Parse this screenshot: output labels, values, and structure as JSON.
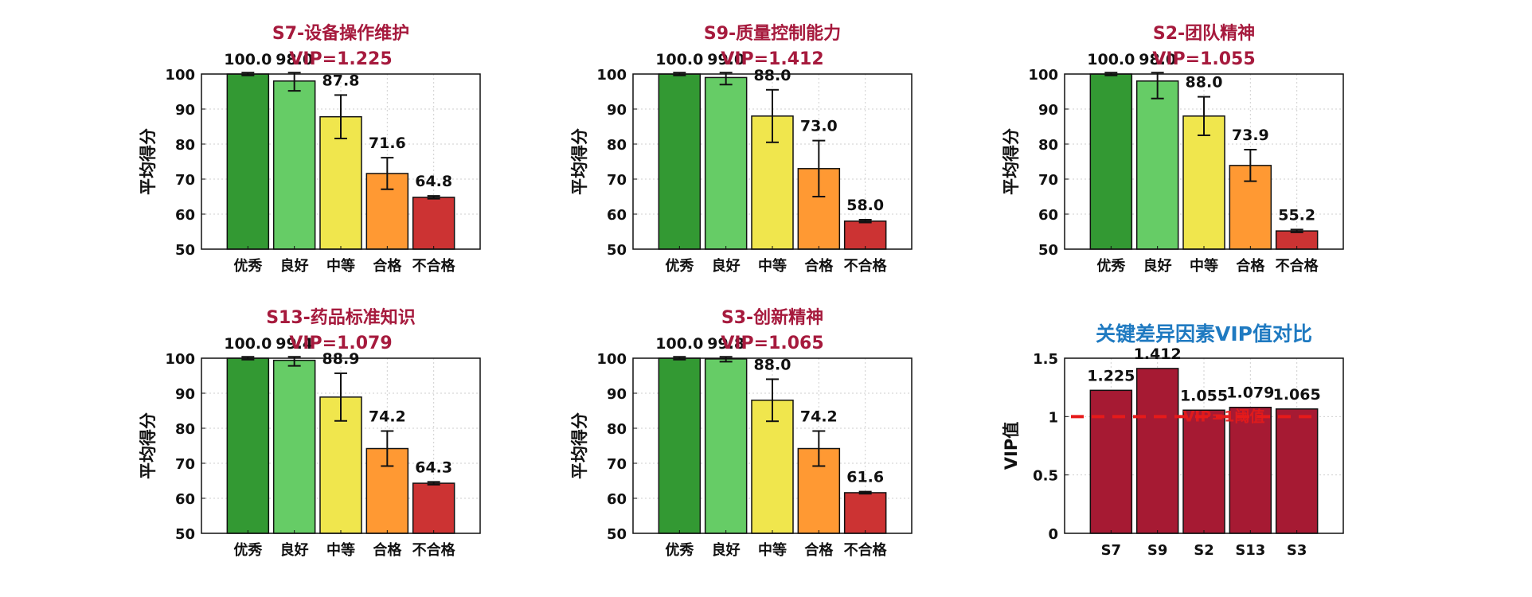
{
  "colors": {
    "excellent": "#339933",
    "good": "#66cc66",
    "medium": "#f0e64d",
    "pass": "#ff9933",
    "fail": "#cc3333",
    "title": "#a61a3d",
    "vip_bar": "#a61a33",
    "summary_title": "#1f7ac1",
    "threshold": "#e61a1a"
  },
  "chart_data": [
    {
      "type": "bar",
      "title": "S7-设备操作维护",
      "subtitle": "VIP=1.225",
      "ylabel": "平均得分",
      "categories": [
        "优秀",
        "良好",
        "中等",
        "合格",
        "不合格"
      ],
      "values": [
        100.0,
        98.0,
        87.8,
        71.6,
        64.8
      ],
      "value_labels": [
        "100.0",
        "98.0",
        "87.8",
        "71.6",
        "64.8"
      ],
      "errors": [
        0.4,
        2.8,
        6.2,
        4.5,
        0.4
      ],
      "ylim": [
        50,
        100
      ],
      "yticks": [
        "50",
        "60",
        "70",
        "80",
        "90",
        "100"
      ],
      "grid": true
    },
    {
      "type": "bar",
      "title": "S9-质量控制能力",
      "subtitle": "VIP=1.412",
      "ylabel": "平均得分",
      "categories": [
        "优秀",
        "良好",
        "中等",
        "合格",
        "不合格"
      ],
      "values": [
        100.0,
        99.0,
        88.0,
        73.0,
        58.0
      ],
      "value_labels": [
        "100.0",
        "99.0",
        "88.0",
        "73.0",
        "58.0"
      ],
      "errors": [
        0.4,
        2.0,
        7.5,
        8.0,
        0.4
      ],
      "ylim": [
        50,
        100
      ],
      "yticks": [
        "50",
        "60",
        "70",
        "80",
        "90",
        "100"
      ],
      "grid": true
    },
    {
      "type": "bar",
      "title": "S2-团队精神",
      "subtitle": "VIP=1.055",
      "ylabel": "平均得分",
      "categories": [
        "优秀",
        "良好",
        "中等",
        "合格",
        "不合格"
      ],
      "values": [
        100.0,
        98.0,
        88.0,
        73.9,
        55.2
      ],
      "value_labels": [
        "100.0",
        "98.0",
        "88.0",
        "73.9",
        "55.2"
      ],
      "errors": [
        0.4,
        5.0,
        5.5,
        4.5,
        0.4
      ],
      "ylim": [
        50,
        100
      ],
      "yticks": [
        "50",
        "60",
        "70",
        "80",
        "90",
        "100"
      ],
      "grid": true
    },
    {
      "type": "bar",
      "title": "S13-药品标准知识",
      "subtitle": "VIP=1.079",
      "ylabel": "平均得分",
      "categories": [
        "优秀",
        "良好",
        "中等",
        "合格",
        "不合格"
      ],
      "values": [
        100.0,
        99.4,
        88.9,
        74.2,
        64.3
      ],
      "value_labels": [
        "100.0",
        "99.4",
        "88.9",
        "74.2",
        "64.3"
      ],
      "errors": [
        0.4,
        1.6,
        6.8,
        5.0,
        0.4
      ],
      "ylim": [
        50,
        100
      ],
      "yticks": [
        "50",
        "60",
        "70",
        "80",
        "90",
        "100"
      ],
      "grid": true
    },
    {
      "type": "bar",
      "title": "S3-创新精神",
      "subtitle": "VIP=1.065",
      "ylabel": "平均得分",
      "categories": [
        "优秀",
        "良好",
        "中等",
        "合格",
        "不合格"
      ],
      "values": [
        100.0,
        99.8,
        88.0,
        74.2,
        61.6
      ],
      "value_labels": [
        "100.0",
        "99.8",
        "88.0",
        "74.2",
        "61.6"
      ],
      "errors": [
        0.4,
        0.8,
        6.0,
        5.0,
        0.3
      ],
      "ylim": [
        50,
        100
      ],
      "yticks": [
        "50",
        "60",
        "70",
        "80",
        "90",
        "100"
      ],
      "grid": true
    },
    {
      "type": "bar",
      "title": "关键差异因素VIP值对比",
      "ylabel": "VIP值",
      "categories": [
        "S7",
        "S9",
        "S2",
        "S13",
        "S3"
      ],
      "values": [
        1.225,
        1.412,
        1.055,
        1.079,
        1.065
      ],
      "value_labels": [
        "1.225",
        "1.412",
        "1.055",
        "1.079",
        "1.065"
      ],
      "ylim": [
        0,
        1.5
      ],
      "yticks": [
        "0",
        "0.5",
        "1",
        "1.5"
      ],
      "threshold": 1,
      "threshold_label": "VIP=1阈值",
      "grid": true
    }
  ]
}
